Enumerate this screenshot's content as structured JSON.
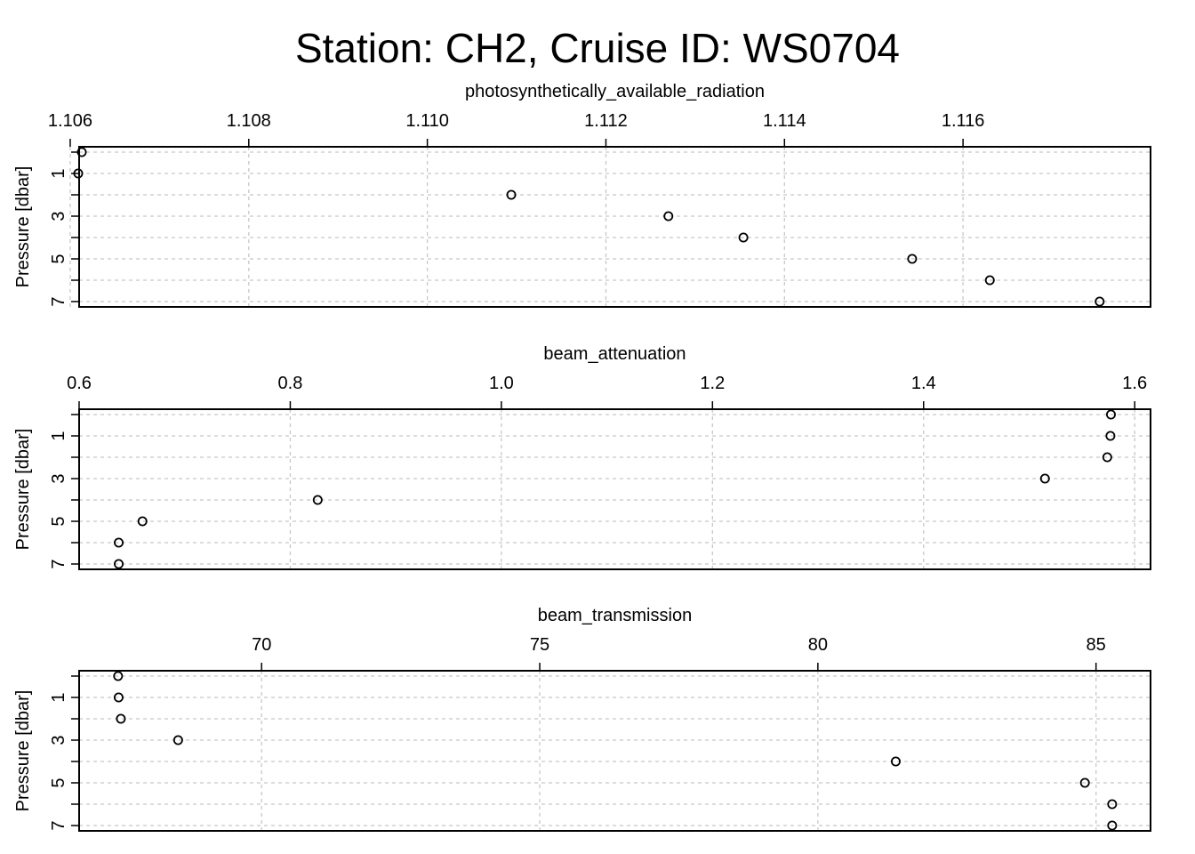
{
  "title": "Station: CH2, Cruise ID: WS0704",
  "chart_data": [
    {
      "type": "scatter",
      "title": "photosynthetically_available_radiation",
      "ylabel": "Pressure [dbar]",
      "xlim": [
        1.1061,
        1.1181
      ],
      "ylim": [
        -0.25,
        7.25
      ],
      "y_reversed": true,
      "x_ticks": [
        1.106,
        1.108,
        1.11,
        1.112,
        1.114,
        1.116
      ],
      "x_tick_labels": [
        "1.106",
        "1.108",
        "1.110",
        "1.112",
        "1.114",
        "1.116"
      ],
      "y_ticks": [
        1,
        3,
        5,
        7
      ],
      "y_tick_labels": [
        "1",
        "3",
        "5",
        "7"
      ],
      "grid": true,
      "points": [
        {
          "x": 1.10613,
          "y": 0
        },
        {
          "x": 1.10609,
          "y": 1
        },
        {
          "x": 1.11094,
          "y": 2
        },
        {
          "x": 1.1127,
          "y": 3
        },
        {
          "x": 1.11354,
          "y": 4
        },
        {
          "x": 1.11543,
          "y": 5
        },
        {
          "x": 1.1163,
          "y": 6
        },
        {
          "x": 1.11753,
          "y": 7
        }
      ]
    },
    {
      "type": "scatter",
      "title": "beam_attenuation",
      "ylabel": "Pressure [dbar]",
      "xlim": [
        0.6,
        1.615
      ],
      "ylim": [
        -0.25,
        7.25
      ],
      "y_reversed": true,
      "x_ticks": [
        0.6,
        0.8,
        1.0,
        1.2,
        1.4,
        1.6
      ],
      "x_tick_labels": [
        "0.6",
        "0.8",
        "1.0",
        "1.2",
        "1.4",
        "1.6"
      ],
      "y_ticks": [
        1,
        3,
        5,
        7
      ],
      "y_tick_labels": [
        "1",
        "3",
        "5",
        "7"
      ],
      "grid": true,
      "points": [
        {
          "x": 1.5775,
          "y": 0
        },
        {
          "x": 1.577,
          "y": 1
        },
        {
          "x": 1.574,
          "y": 2
        },
        {
          "x": 1.515,
          "y": 3
        },
        {
          "x": 0.826,
          "y": 4
        },
        {
          "x": 0.66,
          "y": 5
        },
        {
          "x": 0.6375,
          "y": 6
        },
        {
          "x": 0.6375,
          "y": 7
        }
      ]
    },
    {
      "type": "scatter",
      "title": "beam_transmission",
      "ylabel": "Pressure [dbar]",
      "xlim": [
        66.72,
        85.98
      ],
      "ylim": [
        -0.25,
        7.25
      ],
      "y_reversed": true,
      "x_ticks": [
        70,
        75,
        80,
        85
      ],
      "x_tick_labels": [
        "70",
        "75",
        "80",
        "85"
      ],
      "y_ticks": [
        1,
        3,
        5,
        7
      ],
      "y_tick_labels": [
        "1",
        "3",
        "5",
        "7"
      ],
      "grid": true,
      "points": [
        {
          "x": 67.42,
          "y": 0
        },
        {
          "x": 67.43,
          "y": 1
        },
        {
          "x": 67.47,
          "y": 2
        },
        {
          "x": 68.5,
          "y": 3
        },
        {
          "x": 81.4,
          "y": 4
        },
        {
          "x": 84.8,
          "y": 5
        },
        {
          "x": 85.29,
          "y": 6
        },
        {
          "x": 85.29,
          "y": 7
        }
      ]
    }
  ]
}
